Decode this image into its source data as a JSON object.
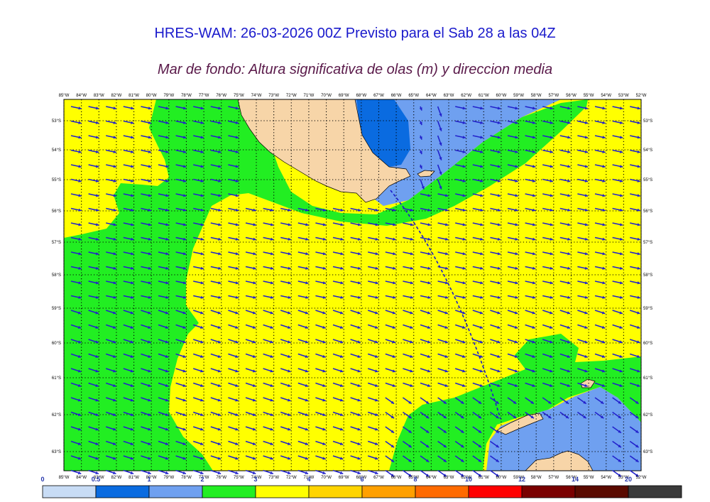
{
  "title": "HRES-WAM: 26-03-2026 00Z Previsto para el Sab 28 a las 04Z",
  "subtitle": "Mar de fondo: Altura significativa de olas (m) y direccion media",
  "longitudes": [
    "85°W",
    "84°W",
    "83°W",
    "82°W",
    "81°W",
    "80°W",
    "79°W",
    "78°W",
    "77°W",
    "76°W",
    "75°W",
    "74°W",
    "73°W",
    "72°W",
    "71°W",
    "70°W",
    "69°W",
    "68°W",
    "67°W",
    "66°W",
    "65°W",
    "64°W",
    "63°W",
    "62°W",
    "61°W",
    "60°W",
    "59°W",
    "58°W",
    "57°W",
    "56°W",
    "55°W",
    "54°W",
    "53°W",
    "52°W"
  ],
  "latitudes": [
    "53°S",
    "54°S",
    "55°S",
    "56°S",
    "57°S",
    "58°S",
    "59°S",
    "60°S",
    "61°S",
    "62°S",
    "63°S"
  ],
  "legend": {
    "ticks": [
      "0",
      "0.5",
      "1",
      "2",
      "3",
      "4",
      "6",
      "8",
      "10",
      "12",
      "14",
      "20"
    ],
    "colors": [
      "#c8dcf5",
      "#0a6be0",
      "#6fa0f0",
      "#22ee22",
      "#ffff00",
      "#ffd400",
      "#ffa000",
      "#ff6a00",
      "#ff0000",
      "#7a0000",
      "#5a0a00",
      "#3a3a3a"
    ]
  },
  "colors": {
    "land": "#f7d5a8",
    "arrow": "#2222cc",
    "grid": "#000000"
  }
}
